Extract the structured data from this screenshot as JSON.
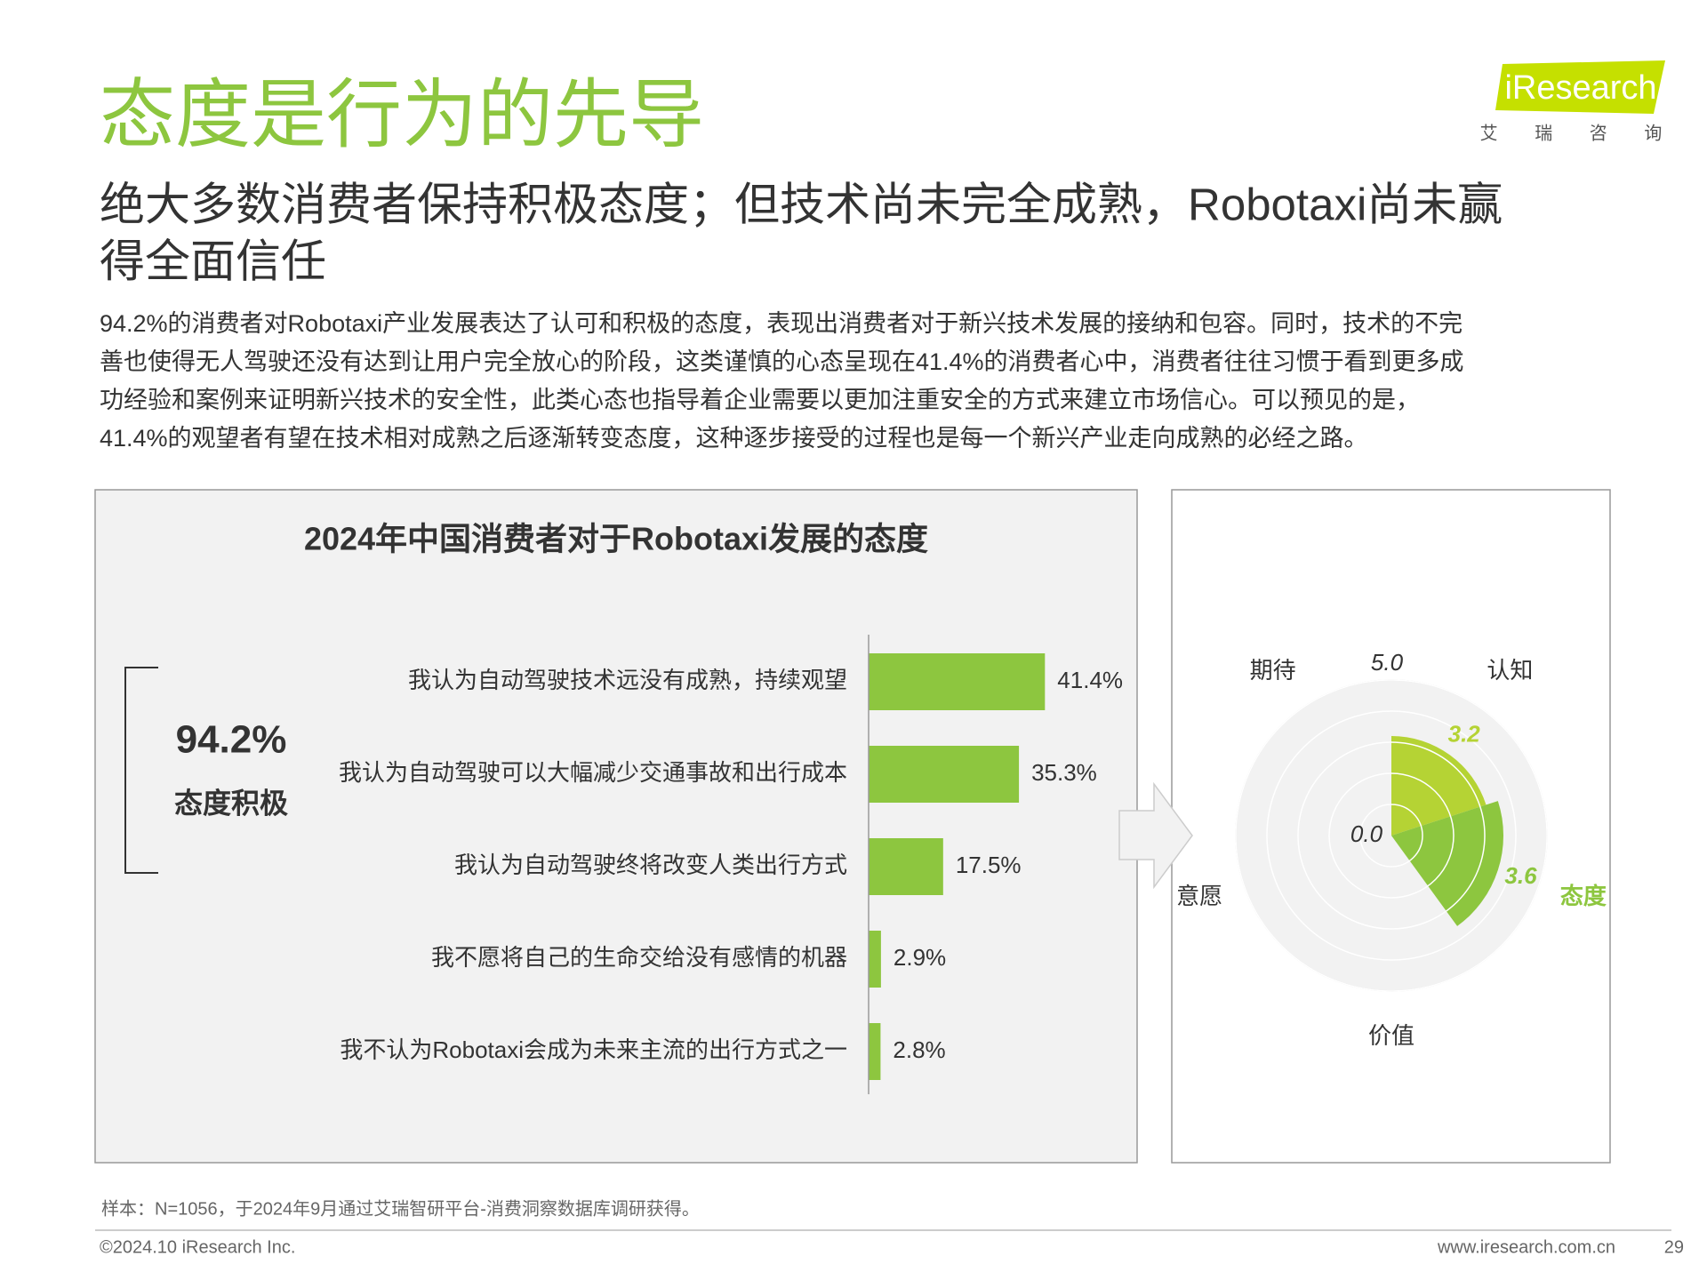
{
  "header": {
    "title": "态度是行为的先导",
    "logo": "iResearch",
    "logo_cn": "艾 瑞 咨 询"
  },
  "subtitle": [
    "绝大多数消费者保持积极态度；但技术尚未完全成熟，Robotaxi尚未赢",
    "得全面信任"
  ],
  "body": [
    "94.2%的消费者对Robotaxi产业发展表达了认可和积极的态度，表现出消费者对于新兴技术发展的接纳和包容。同时，技术的不完",
    "善也使得无人驾驶还没有达到让用户完全放心的阶段，这类谨慎的心态呈现在41.4%的消费者心中，消费者往往习惯于看到更多成",
    "功经验和案例来证明新兴技术的安全性，此类心态也指导着企业需要以更加注重安全的方式来建立市场信心。可以预见的是，",
    "41.4%的观望者有望在技术相对成熟之后逐渐转变态度，这种逐步接受的过程也是每一个新兴产业走向成熟的必经之路。"
  ],
  "chart_data": [
    {
      "type": "bar",
      "orientation": "horizontal",
      "title": "2024年中国消费者对于Robotaxi发展的态度",
      "categories": [
        "我认为自动驾驶技术远没有成熟，持续观望",
        "我认为自动驾驶可以大幅减少交通事故和出行成本",
        "我认为自动驾驶终将改变人类出行方式",
        "我不愿将自己的生命交给没有感情的机器",
        "我不认为Robotaxi会成为未来主流的出行方式之一"
      ],
      "values": [
        41.4,
        35.3,
        17.5,
        2.9,
        2.8
      ],
      "value_labels": [
        "41.4%",
        "35.3%",
        "17.5%",
        "2.9%",
        "2.8%"
      ],
      "color": "#8dc63f",
      "xlim": [
        0,
        100
      ],
      "annotation": {
        "value": "94.2%",
        "label": "态度积极"
      }
    },
    {
      "type": "polar",
      "categories": [
        "认知",
        "态度",
        "价值",
        "意愿",
        "期待"
      ],
      "values": [
        3.2,
        3.6,
        null,
        null,
        null
      ],
      "value_labels": [
        "3.2",
        "3.6",
        null,
        null,
        null
      ],
      "colors": [
        "#b5d334",
        "#8dc63f",
        null,
        null,
        null
      ],
      "label_colors": [
        "#333333",
        "#8dc63f",
        "#333333",
        "#333333",
        "#333333"
      ],
      "rlim": [
        0,
        5
      ],
      "rticks": [
        {
          "value": 0,
          "label": "0.0"
        },
        {
          "value": 5,
          "label": "5.0"
        }
      ],
      "rgrid": [
        1,
        2,
        3,
        4,
        5
      ]
    }
  ],
  "footer": {
    "note": "样本：N=1056，于2024年9月通过艾瑞智研平台-消费洞察数据库调研获得。",
    "copyright": "©2024.10 iResearch Inc.",
    "website": "www.iresearch.com.cn",
    "page": 29
  }
}
